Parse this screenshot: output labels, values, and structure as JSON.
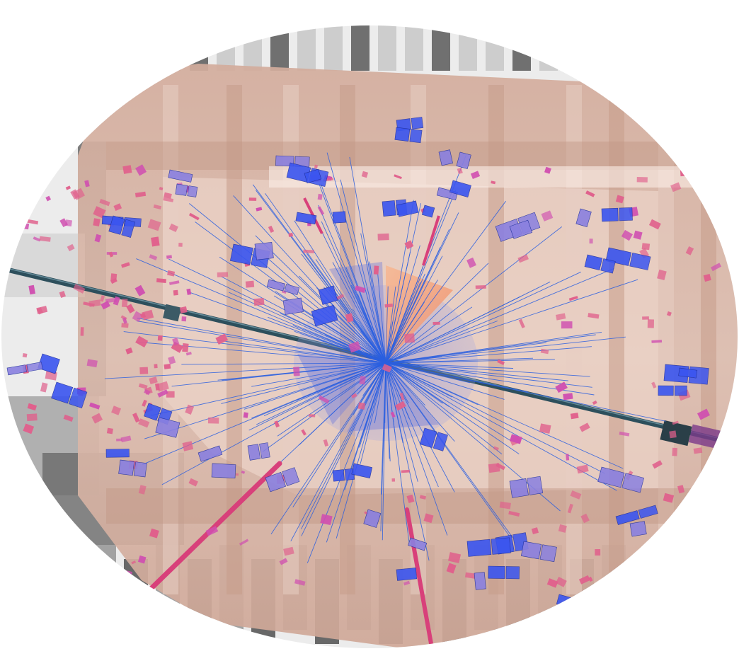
{
  "scene": {
    "subject": "particle-collision-event-display",
    "colors": {
      "background": "#ffffff",
      "detector_gray": "#c8c8c8",
      "detector_dark": "#5a5a5a",
      "calorimeter_tan": "#d6b2a4",
      "calorimeter_light": "#f2dcd2",
      "track_blue": "#2a5fe0",
      "cone_blue": "#7f86d8",
      "cone_orange": "#f4a77e",
      "muon_chamber_blue": "#3a55f0",
      "muon_chamber_violet": "#8a80e0",
      "hit_pink": "#e0608c",
      "hit_magenta": "#d04fb0",
      "muon_track_pink": "#d8407a",
      "beampipe": "#2d4f5c"
    },
    "counts": {
      "tracks": 170,
      "pink_hits": 260,
      "blue_chambers": 60
    }
  }
}
